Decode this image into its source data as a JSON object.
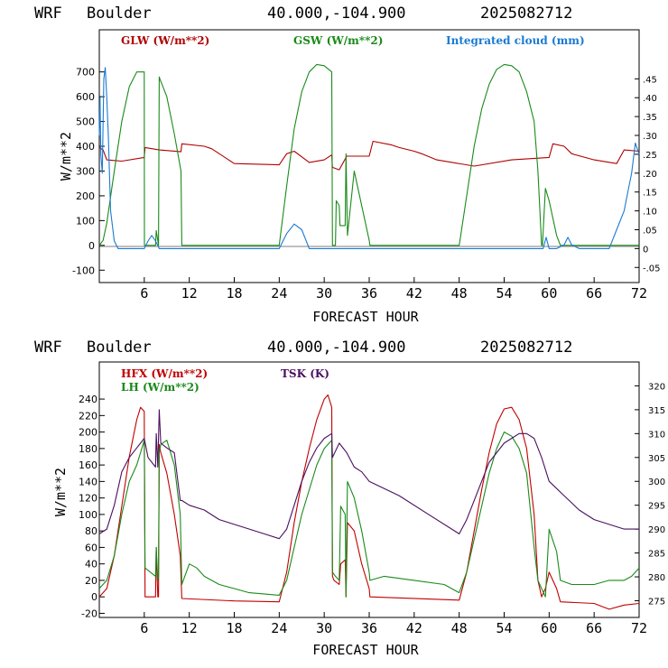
{
  "chart_data": [
    {
      "type": "line",
      "header": {
        "model": "WRF",
        "site": "Boulder",
        "coords": "40.000,-104.900",
        "init": "2025082712"
      },
      "xlabel": "FORECAST HOUR",
      "ylabel": "W/m**2",
      "xlim": [
        0,
        72
      ],
      "ylim": [
        -150,
        870
      ],
      "y2lim": [
        -0.09,
        0.58
      ],
      "xticks": [
        6,
        12,
        18,
        24,
        30,
        36,
        42,
        48,
        54,
        60,
        66,
        72
      ],
      "yticks": [
        -100,
        0,
        100,
        200,
        300,
        400,
        500,
        600,
        700
      ],
      "y2ticks": [
        -0.05,
        0,
        0.05,
        0.1,
        0.15,
        0.2,
        0.25,
        0.3,
        0.35,
        0.4,
        0.45
      ],
      "y2ticklabels": [
        "-.05",
        "0",
        ".05",
        ".10",
        ".15",
        ".20",
        ".25",
        ".30",
        ".35",
        ".40",
        ".45"
      ],
      "series": [
        {
          "name": "GLW (W/m**2)",
          "color": "#b00000",
          "axis": "left",
          "x": [
            0,
            0.5,
            1,
            3,
            6,
            6.1,
            8,
            10.9,
            11,
            14,
            15,
            18,
            24,
            25,
            26,
            28,
            30,
            31,
            31.1,
            32,
            33,
            36,
            36.5,
            39,
            40,
            42,
            43,
            45,
            50,
            55,
            60,
            60.5,
            62,
            63,
            66,
            69,
            70,
            72
          ],
          "y": [
            395,
            385,
            345,
            340,
            355,
            395,
            385,
            378,
            410,
            400,
            390,
            330,
            325,
            370,
            380,
            335,
            345,
            365,
            315,
            305,
            360,
            360,
            420,
            405,
            395,
            380,
            370,
            345,
            320,
            345,
            355,
            410,
            400,
            370,
            345,
            330,
            385,
            380
          ]
        },
        {
          "name": "GSW (W/m**2)",
          "color": "#1a8a1a",
          "axis": "left",
          "x": [
            0,
            0.5,
            1,
            2,
            3,
            4,
            5,
            6,
            6.02,
            7.5,
            7.6,
            7.9,
            8,
            8.1,
            9,
            10,
            10.9,
            11,
            24,
            25,
            26,
            27,
            28,
            29,
            30,
            31,
            31.1,
            31.5,
            31.6,
            32,
            32.1,
            32.8,
            32.9,
            33.1,
            34,
            35,
            36,
            36.1,
            48,
            49,
            50,
            51,
            52,
            53,
            54,
            55,
            56,
            57,
            58,
            58.5,
            59,
            59.1,
            59.5,
            60,
            61,
            61.5,
            72
          ],
          "y": [
            0,
            20,
            90,
            300,
            500,
            640,
            700,
            700,
            0,
            0,
            60,
            0,
            680,
            670,
            600,
            450,
            300,
            0,
            0,
            240,
            470,
            620,
            700,
            730,
            725,
            700,
            0,
            0,
            180,
            160,
            80,
            80,
            370,
            40,
            300,
            160,
            20,
            0,
            0,
            200,
            400,
            550,
            650,
            710,
            730,
            725,
            700,
            620,
            500,
            300,
            0,
            0,
            230,
            180,
            40,
            0,
            0
          ]
        },
        {
          "name": "Integrated cloud (mm)",
          "color": "#1a7ad4",
          "axis": "right",
          "x": [
            0,
            0.1,
            0.2,
            0.4,
            0.6,
            0.8,
            1,
            1.2,
            1.5,
            2,
            2.5,
            3,
            6,
            6.5,
            7,
            7.5,
            8,
            24,
            25,
            26,
            27,
            28,
            59.2,
            59.6,
            60,
            61,
            62,
            62.5,
            63,
            64,
            68,
            69,
            70,
            70.5,
            71,
            71.5,
            72
          ],
          "y": [
            0.3,
            0.4,
            0.25,
            0.2,
            0.45,
            0.48,
            0.4,
            0.3,
            0.1,
            0.02,
            0,
            0,
            0,
            0.02,
            0.035,
            0.02,
            0,
            0,
            0.04,
            0.065,
            0.05,
            0,
            0,
            0.03,
            0,
            0,
            0.01,
            0.03,
            0.01,
            0,
            0,
            0.05,
            0.1,
            0.15,
            0.2,
            0.28,
            0.25
          ]
        }
      ]
    },
    {
      "type": "line",
      "header": {
        "model": "WRF",
        "site": "Boulder",
        "coords": "40.000,-104.900",
        "init": "2025082712"
      },
      "xlabel": "FORECAST HOUR",
      "ylabel": "W/m**2",
      "xlim": [
        0,
        72
      ],
      "ylim": [
        -25,
        285
      ],
      "y2lim": [
        271.5,
        325
      ],
      "xticks": [
        6,
        12,
        18,
        24,
        30,
        36,
        42,
        48,
        54,
        60,
        66,
        72
      ],
      "yticks": [
        -20,
        0,
        20,
        40,
        60,
        80,
        100,
        120,
        140,
        160,
        180,
        200,
        220,
        240
      ],
      "y2ticks": [
        275,
        280,
        285,
        290,
        295,
        300,
        305,
        310,
        315,
        320
      ],
      "series": [
        {
          "name": "HFX (W/m**2)",
          "color": "#c00000",
          "axis": "left",
          "x": [
            0,
            1,
            2,
            3,
            4,
            5,
            5.5,
            6,
            6.1,
            6.2,
            7.5,
            7.6,
            7.8,
            7.9,
            8,
            8.2,
            9,
            10,
            10.8,
            11,
            18,
            24,
            25,
            26,
            27,
            28,
            29,
            30,
            30.5,
            31,
            31.1,
            31.3,
            32,
            32.2,
            32.8,
            32.9,
            33.1,
            34,
            35,
            36,
            36.1,
            48,
            49,
            50,
            51,
            52,
            53,
            54,
            55,
            56,
            57,
            58,
            58.5,
            59,
            59.5,
            60,
            61,
            61.5,
            66,
            68,
            70,
            72
          ],
          "y": [
            0,
            10,
            50,
            110,
            170,
            215,
            230,
            225,
            0,
            0,
            0,
            60,
            0,
            0,
            185,
            175,
            150,
            100,
            50,
            -2,
            -5,
            -6,
            30,
            90,
            140,
            180,
            215,
            240,
            245,
            230,
            25,
            20,
            15,
            40,
            45,
            0,
            90,
            80,
            40,
            10,
            0,
            -4,
            30,
            80,
            130,
            175,
            210,
            228,
            230,
            215,
            180,
            100,
            20,
            0,
            10,
            30,
            10,
            -6,
            -8,
            -15,
            -10,
            -8
          ]
        },
        {
          "name": "LH (W/m**2)",
          "color": "#1a8a1a",
          "axis": "left",
          "x": [
            0,
            1,
            2,
            3,
            4,
            5,
            5.5,
            6,
            6.1,
            7.5,
            7.6,
            7.8,
            7.9,
            8,
            8.2,
            9,
            10,
            10.8,
            11,
            12,
            13,
            14,
            16,
            18,
            20,
            24,
            25,
            26,
            27,
            28,
            29,
            30,
            31,
            31.1,
            31.5,
            32,
            32.2,
            32.8,
            32.9,
            33.1,
            34,
            35,
            36,
            36.1,
            38,
            42,
            46,
            48,
            49,
            50,
            51,
            52,
            53,
            54,
            55,
            56,
            57,
            58,
            58.5,
            59,
            59.5,
            60,
            61,
            61.5,
            63,
            66,
            68,
            70,
            71,
            72
          ],
          "y": [
            10,
            20,
            50,
            100,
            140,
            160,
            175,
            190,
            35,
            25,
            60,
            20,
            25,
            175,
            185,
            190,
            160,
            100,
            15,
            40,
            35,
            25,
            15,
            10,
            5,
            2,
            20,
            60,
            100,
            130,
            160,
            180,
            190,
            30,
            25,
            20,
            110,
            100,
            0,
            140,
            120,
            80,
            30,
            20,
            25,
            20,
            15,
            5,
            30,
            70,
            110,
            150,
            180,
            200,
            195,
            180,
            150,
            60,
            20,
            10,
            0,
            82,
            55,
            20,
            15,
            15,
            20,
            20,
            25,
            35
          ]
        },
        {
          "name": "TSK (K)",
          "color": "#4a1060",
          "axis": "right",
          "x": [
            0,
            1,
            2,
            3,
            4,
            5,
            5.5,
            6,
            6.5,
            7.5,
            7.6,
            7.8,
            8,
            8.2,
            9,
            10,
            10.8,
            11,
            12,
            14,
            16,
            18,
            20,
            22,
            24,
            25,
            26,
            27,
            28,
            29,
            30,
            31,
            31.1,
            32,
            33,
            34,
            35,
            36,
            40,
            44,
            48,
            49,
            50,
            51,
            52,
            53,
            54,
            55,
            56,
            57,
            58,
            59,
            60,
            62,
            64,
            66,
            68,
            70,
            72
          ],
          "y": [
            289,
            290,
            295,
            302,
            305,
            307,
            308,
            309,
            305,
            303,
            310,
            303,
            315,
            308,
            307,
            306,
            296,
            296,
            295,
            294,
            292,
            291,
            290,
            289,
            288,
            290,
            295,
            300,
            304,
            307,
            309,
            310,
            305,
            308,
            306,
            303,
            302,
            300,
            297,
            293,
            289,
            292,
            296,
            300,
            304,
            306,
            308,
            309,
            310,
            310,
            309,
            305,
            300,
            297,
            294,
            292,
            291,
            290,
            290
          ]
        }
      ]
    }
  ]
}
